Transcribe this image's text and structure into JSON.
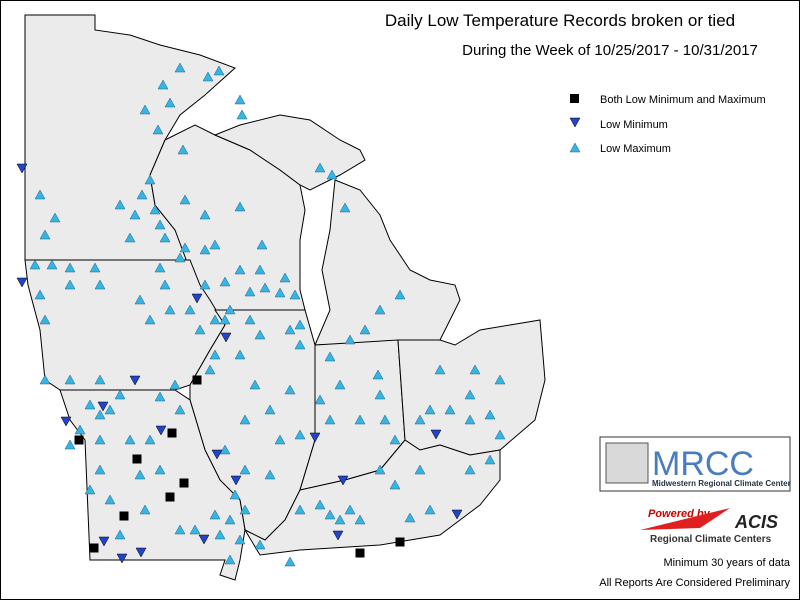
{
  "header": {
    "title": "Daily Low Temperature Records broken or tied",
    "subtitle": "During the Week of 10/25/2017 - 10/31/2017"
  },
  "legend": {
    "items": [
      {
        "label": "Both Low Minimum and Maximum"
      },
      {
        "label": "Low Minimum"
      },
      {
        "label": "Low Maximum"
      }
    ]
  },
  "logos": {
    "mrcc": {
      "name": "MRCC",
      "full_name": "Midwestern Regional Climate Center"
    },
    "acis": {
      "tagline": "Powered by",
      "name": "ACIS",
      "subtitle": "Regional Climate Centers"
    }
  },
  "notes": [
    "Minimum 30 years of data",
    "All Reports Are Considered Preliminary"
  ]
}
